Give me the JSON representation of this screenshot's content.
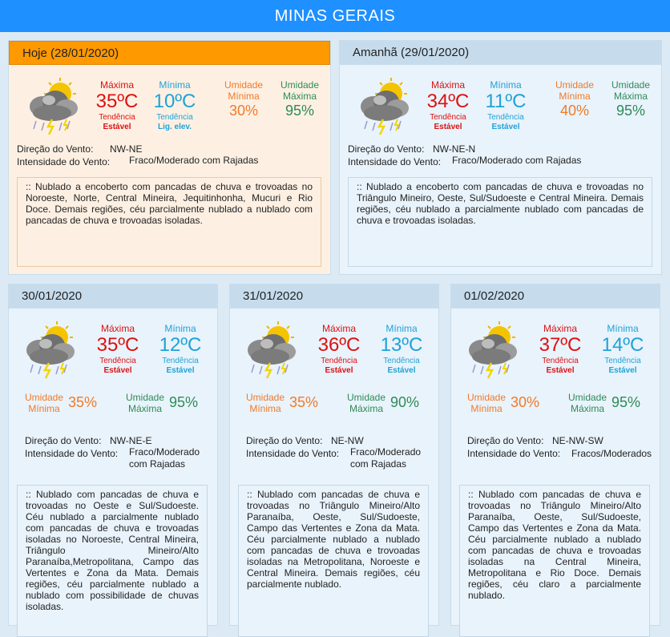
{
  "header": {
    "title": "MINAS GERAIS"
  },
  "labels": {
    "max": "Máxima",
    "min": "Mínima",
    "trend": "Tendência",
    "umidade": "Umidade",
    "wind_dir": "Direção do Vento:",
    "wind_int": "Intensidade do Vento:"
  },
  "days": [
    {
      "title": "Hoje (28/01/2020)",
      "max": "35ºC",
      "max_trend": "Estável",
      "min": "10ºC",
      "min_trend": "Lig. elev.",
      "hum_min": "30%",
      "hum_max": "95%",
      "wind_dir": "NW-NE",
      "wind_int": "Fraco/Moderado com Rajadas",
      "desc": ":: Nublado a encoberto com pancadas de chuva e trovoadas no Noroeste, Norte, Central Mineira, Jequitinhonha, Mucuri e Rio Doce. Demais regiões, céu parcialmente nublado a nublado com pancadas de chuva e trovoadas isoladas."
    },
    {
      "title": "Amanhã (29/01/2020)",
      "max": "34ºC",
      "max_trend": "Estável",
      "min": "11ºC",
      "min_trend": "Estável",
      "hum_min": "40%",
      "hum_max": "95%",
      "wind_dir": "NW-NE-N",
      "wind_int": "Fraco/Moderado com Rajadas",
      "desc": ":: Nublado a encoberto com pancadas de chuva e trovoadas no Triângulo Mineiro, Oeste, Sul/Sudoeste e Central Mineira. Demais regiões, céu nublado a parcialmente nublado com pancadas de chuva e trovoadas isoladas."
    },
    {
      "title": "30/01/2020",
      "max": "35ºC",
      "max_trend": "Estável",
      "min": "12ºC",
      "min_trend": "Estável",
      "hum_min": "35%",
      "hum_max": "95%",
      "wind_dir": "NW-NE-E",
      "wind_int": "Fraco/Moderado com Rajadas",
      "desc": ":: Nublado com pancadas de chuva e trovoadas no Oeste e Sul/Sudoeste. Céu nublado a parcialmente nublado com pancadas de chuva e trovoadas isoladas no Noroeste, Central Mineira, Triângulo Mineiro/Alto Paranaíba,Metropolitana, Campo das Vertentes e Zona da Mata. Demais regiões, céu parcialmente nublado a nublado com possibilidade de chuvas isoladas."
    },
    {
      "title": "31/01/2020",
      "max": "36ºC",
      "max_trend": "Estável",
      "min": "13ºC",
      "min_trend": "Estável",
      "hum_min": "35%",
      "hum_max": "90%",
      "wind_dir": "NE-NW",
      "wind_int": "Fraco/Moderado com Rajadas",
      "desc": ":: Nublado com pancadas de chuva e trovoadas no Triângulo Mineiro/Alto Paranaíba, Oeste, Sul/Sudoeste, Campo das Vertentes e Zona da Mata. Céu parcialmente nublado a nublado com pancadas de chuva e trovoadas isoladas na Metropolitana, Noroeste e Central Mineira. Demais regiões, céu parcialmente nublado."
    },
    {
      "title": "01/02/2020",
      "max": "37ºC",
      "max_trend": "Estável",
      "min": "14ºC",
      "min_trend": "Estável",
      "hum_min": "30%",
      "hum_max": "95%",
      "wind_dir": "NE-NW-SW",
      "wind_int": "Fracos/Moderados",
      "desc": ":: Nublado com pancadas de chuva e trovoadas no Triângulo Mineiro/Alto Paranaíba, Oeste, Sul/Sudoeste, Campo das Vertentes e Zona da Mata. Céu parcialmente nublado a nublado com pancadas de chuva e trovoadas isoladas na Central Mineira, Metropolitana e Rio Doce. Demais regiões, céu claro a parcialmente nublado."
    }
  ],
  "icon": "sun-cloud-thunderstorm-icon",
  "colors": {
    "header": "#1e90ff",
    "today": "#ff9900",
    "max": "#dd1111",
    "min": "#1fa2d8",
    "hum_min": "#f07a2a",
    "hum_max": "#2e8b57"
  }
}
